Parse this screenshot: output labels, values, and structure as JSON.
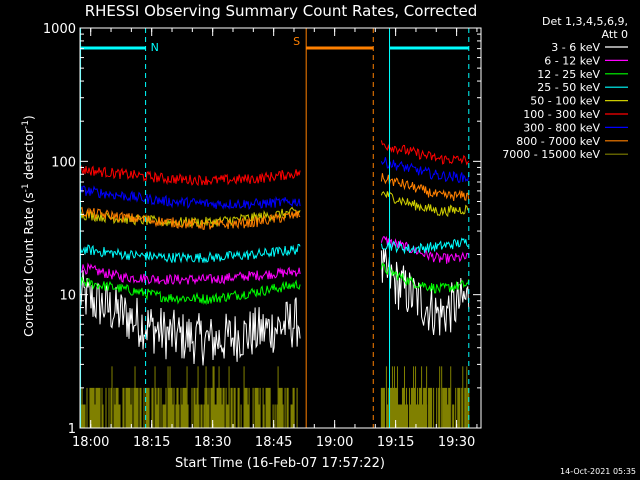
{
  "chart_data": {
    "type": "line",
    "title": "RHESSI Observing Summary Count Rates, Corrected",
    "xlabel": "Start Time (16-Feb-07 17:57:22)",
    "ylabel": "Corrected Count Rate (s⁻¹ detector⁻¹)",
    "ylabel_parts": {
      "main": "Corrected Count Rate (s",
      "sup1": "-1",
      "mid": " detector",
      "sup2": "-1",
      "end": ")"
    },
    "x_range": [
      "17:57:22",
      "19:36:00"
    ],
    "x_ticks": [
      "18:00",
      "18:15",
      "18:30",
      "18:45",
      "19:00",
      "19:15",
      "19:30"
    ],
    "y_scale": "log",
    "y_range": [
      1,
      1000
    ],
    "y_ticks": [
      "1",
      "10",
      "100",
      "1000"
    ],
    "legend_header": [
      "Det 1,3,4,5,6,9,",
      "Att 0"
    ],
    "timestamp": "14-Oct-2021 05:35",
    "annotations": [
      {
        "text": "N",
        "color": "#00ffff",
        "x_start": "17:57:22",
        "x_end": "18:13:30"
      },
      {
        "text": "S",
        "color": "#ff8000",
        "x_start": "18:53:00",
        "x_end": "19:09:30"
      },
      {
        "text": "",
        "color": "#00ffff",
        "x_start": "19:13:30",
        "x_end": "19:33:00"
      }
    ],
    "vlines": [
      {
        "t": "17:57:30",
        "color": "#00ffff",
        "style": "solid"
      },
      {
        "t": "18:13:30",
        "color": "#00ffff",
        "style": "dashed"
      },
      {
        "t": "18:53:00",
        "color": "#ff8000",
        "style": "solid"
      },
      {
        "t": "19:09:30",
        "color": "#ff8000",
        "style": "dashed"
      },
      {
        "t": "19:13:30",
        "color": "#00ffff",
        "style": "solid"
      },
      {
        "t": "19:33:00",
        "color": "#00ffff",
        "style": "dashed"
      }
    ],
    "segments": [
      {
        "name": "day1",
        "start": "17:57:22",
        "end": "18:51:30"
      },
      {
        "name": "day2",
        "start": "19:11:30",
        "end": "19:33:00"
      }
    ],
    "series": [
      {
        "name": "3 - 6 keV",
        "color": "#ffffff",
        "segA": [
          10,
          7,
          5,
          4.5,
          5.2,
          6.3
        ],
        "segB": [
          15,
          10,
          7,
          9.5
        ]
      },
      {
        "name": "6 - 12 keV",
        "color": "#ff00ff",
        "segA": [
          16,
          13.5,
          13,
          13,
          14,
          15
        ],
        "segB": [
          26,
          22,
          18.5,
          19
        ]
      },
      {
        "name": "12 - 25 keV",
        "color": "#00ff00",
        "segA": [
          12.5,
          11,
          9.5,
          9.3,
          10.5,
          12
        ],
        "segB": [
          16,
          12.5,
          11,
          12
        ]
      },
      {
        "name": "25 - 50 keV",
        "color": "#00ffff",
        "segA": [
          22,
          20,
          19,
          19,
          20,
          22
        ],
        "segB": [
          24,
          22,
          23,
          25
        ]
      },
      {
        "name": "50 - 100 keV",
        "color": "#cccc00",
        "segA": [
          40,
          37,
          35,
          35,
          38,
          42
        ],
        "segB": [
          58,
          48,
          42,
          44
        ]
      },
      {
        "name": "100 - 300 keV",
        "color": "#ff0000",
        "segA": [
          87,
          80,
          74,
          72,
          74,
          82
        ],
        "segB": [
          135,
          118,
          104,
          102
        ]
      },
      {
        "name": "300 - 800 keV",
        "color": "#0000ff",
        "segA": [
          61,
          55,
          50,
          48,
          48,
          50
        ],
        "segB": [
          100,
          88,
          78,
          75
        ]
      },
      {
        "name": "800 - 7000 keV",
        "color": "#ff8000",
        "segA": [
          42,
          38,
          35,
          33,
          35,
          40
        ],
        "segB": [
          75,
          65,
          55,
          55
        ]
      },
      {
        "name": "7000 - 15000 keV",
        "color": "#808000",
        "segA": [
          2,
          2,
          2,
          2,
          2,
          2
        ],
        "segB": [
          2,
          2,
          2,
          2
        ]
      }
    ]
  }
}
